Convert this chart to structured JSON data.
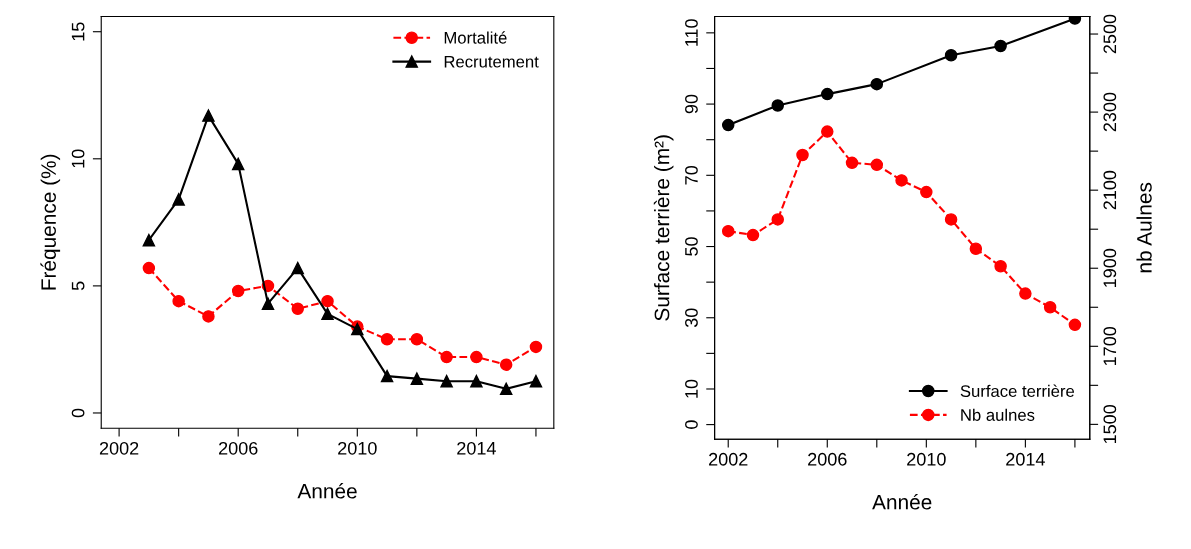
{
  "chart_data": [
    {
      "type": "line",
      "xlabel": "Année",
      "ylabel": "Fréquence (%)",
      "x": [
        2003,
        2004,
        2005,
        2006,
        2007,
        2008,
        2009,
        2010,
        2011,
        2012,
        2013,
        2014,
        2015,
        2016
      ],
      "xlim": [
        2001.4,
        2016.6
      ],
      "xticks": [
        2002,
        {
          "value": 2004,
          "label": null
        },
        2006,
        {
          "value": 2008,
          "label": null
        },
        2010,
        {
          "value": 2012,
          "label": null
        },
        2014,
        {
          "value": 2016,
          "label": null
        }
      ],
      "ylim": [
        -0.6,
        15.6
      ],
      "yticks": [
        0,
        5,
        10,
        15
      ],
      "grid": false,
      "legend": "top right",
      "series": [
        {
          "name": "Mortalité",
          "color": "#ff0000",
          "marker": "circle",
          "line_style": "dashed",
          "values": [
            5.7,
            4.4,
            3.8,
            4.8,
            5.0,
            4.1,
            4.4,
            3.4,
            2.9,
            2.9,
            2.2,
            2.2,
            1.9,
            2.6
          ]
        },
        {
          "name": "Recrutement",
          "color": "#000000",
          "marker": "triangle",
          "line_style": "solid",
          "values": [
            6.8,
            8.4,
            11.7,
            9.8,
            4.3,
            5.7,
            3.9,
            3.3,
            1.45,
            1.35,
            1.25,
            1.25,
            0.95,
            1.25
          ]
        }
      ]
    },
    {
      "type": "line",
      "xlabel": "Année",
      "ylabel": "Surface terrière (m²)",
      "y2label": "nb Aulnes",
      "xlim": [
        2001.45,
        2016.6
      ],
      "xticks": [
        2002,
        {
          "value": 2004,
          "label": null
        },
        2006,
        {
          "value": 2008,
          "label": null
        },
        2010,
        {
          "value": 2012,
          "label": null
        },
        2014,
        {
          "value": 2016,
          "label": null
        }
      ],
      "ylim": [
        -4.1,
        114.6
      ],
      "yticks": [
        0,
        10,
        {
          "value": 20,
          "label": null
        },
        30,
        {
          "value": 40,
          "label": null
        },
        50,
        {
          "value": 60,
          "label": null
        },
        70,
        {
          "value": 80,
          "label": null
        },
        90,
        {
          "value": 100,
          "label": null
        },
        110
      ],
      "y2lim": [
        1462,
        2545
      ],
      "y2ticks": [
        1500,
        {
          "value": 1600,
          "label": null
        },
        1700,
        {
          "value": 1800,
          "label": null
        },
        1900,
        {
          "value": 2000,
          "label": null
        },
        2100,
        {
          "value": 2200,
          "label": null
        },
        2300,
        {
          "value": 2400,
          "label": null
        },
        2500
      ],
      "grid": false,
      "legend": "bottom right",
      "series": [
        {
          "name": "Surface terrière",
          "color": "#000000",
          "marker": "circle",
          "line_style": "solid",
          "x": [
            2002,
            2004,
            2006,
            2008,
            2011,
            2013,
            2016
          ],
          "values": [
            84.1,
            89.6,
            92.8,
            95.6,
            103.7,
            106.3,
            114.0
          ]
        },
        {
          "name": "Nb aulnes",
          "color": "#ff0000",
          "marker": "circle",
          "line_style": "dashed",
          "axis": "y2",
          "x": [
            2002,
            2003,
            2004,
            2005,
            2006,
            2007,
            2008,
            2009,
            2010,
            2011,
            2012,
            2013,
            2014,
            2015,
            2016
          ],
          "values": [
            1995,
            1985,
            2025,
            2190,
            2250,
            2170,
            2165,
            2125,
            2095,
            2025,
            1950,
            1905,
            1835,
            1800,
            1755
          ]
        }
      ]
    }
  ]
}
